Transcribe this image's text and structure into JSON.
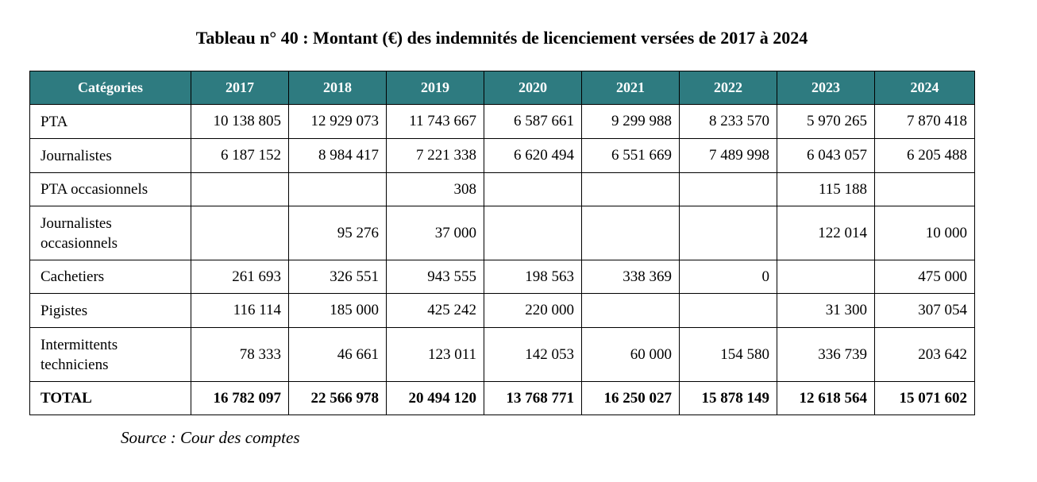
{
  "title": "Tableau n° 40 : Montant (€) des indemnités de licenciement versées de 2017 à 2024",
  "table": {
    "header": [
      "Catégories",
      "2017",
      "2018",
      "2019",
      "2020",
      "2021",
      "2022",
      "2023",
      "2024"
    ],
    "rows": [
      {
        "category": "PTA",
        "values": [
          "10 138 805",
          "12 929 073",
          "11 743 667",
          "6 587 661",
          "9 299 988",
          "8 233 570",
          "5 970 265",
          "7 870 418"
        ]
      },
      {
        "category": "Journalistes",
        "values": [
          "6 187 152",
          "8 984 417",
          "7 221 338",
          "6 620 494",
          "6 551 669",
          "7 489 998",
          "6 043 057",
          "6 205 488"
        ]
      },
      {
        "category": "PTA occasionnels",
        "values": [
          "",
          "",
          "308",
          "",
          "",
          "",
          "115 188",
          ""
        ]
      },
      {
        "category": "Journalistes occasionnels",
        "values": [
          "",
          "95 276",
          "37 000",
          "",
          "",
          "",
          "122 014",
          "10 000"
        ]
      },
      {
        "category": "Cachetiers",
        "values": [
          "261 693",
          "326 551",
          "943 555",
          "198 563",
          "338 369",
          "0",
          "",
          "475 000"
        ]
      },
      {
        "category": "Pigistes",
        "values": [
          "116 114",
          "185 000",
          "425 242",
          "220 000",
          "",
          "",
          "31 300",
          "307 054"
        ]
      },
      {
        "category": "Intermittents techniciens",
        "values": [
          "78 333",
          "46 661",
          "123 011",
          "142 053",
          "60 000",
          "154 580",
          "336 739",
          "203 642"
        ]
      }
    ],
    "total": {
      "category": "TOTAL",
      "values": [
        "16 782 097",
        "22 566 978",
        "20 494 120",
        "13 768 771",
        "16 250 027",
        "15 878 149",
        "12 618 564",
        "15 071 602"
      ]
    }
  },
  "source": "Source : Cour des comptes",
  "colors": {
    "header_background": "#2e7b80",
    "header_text": "#ffffff"
  }
}
